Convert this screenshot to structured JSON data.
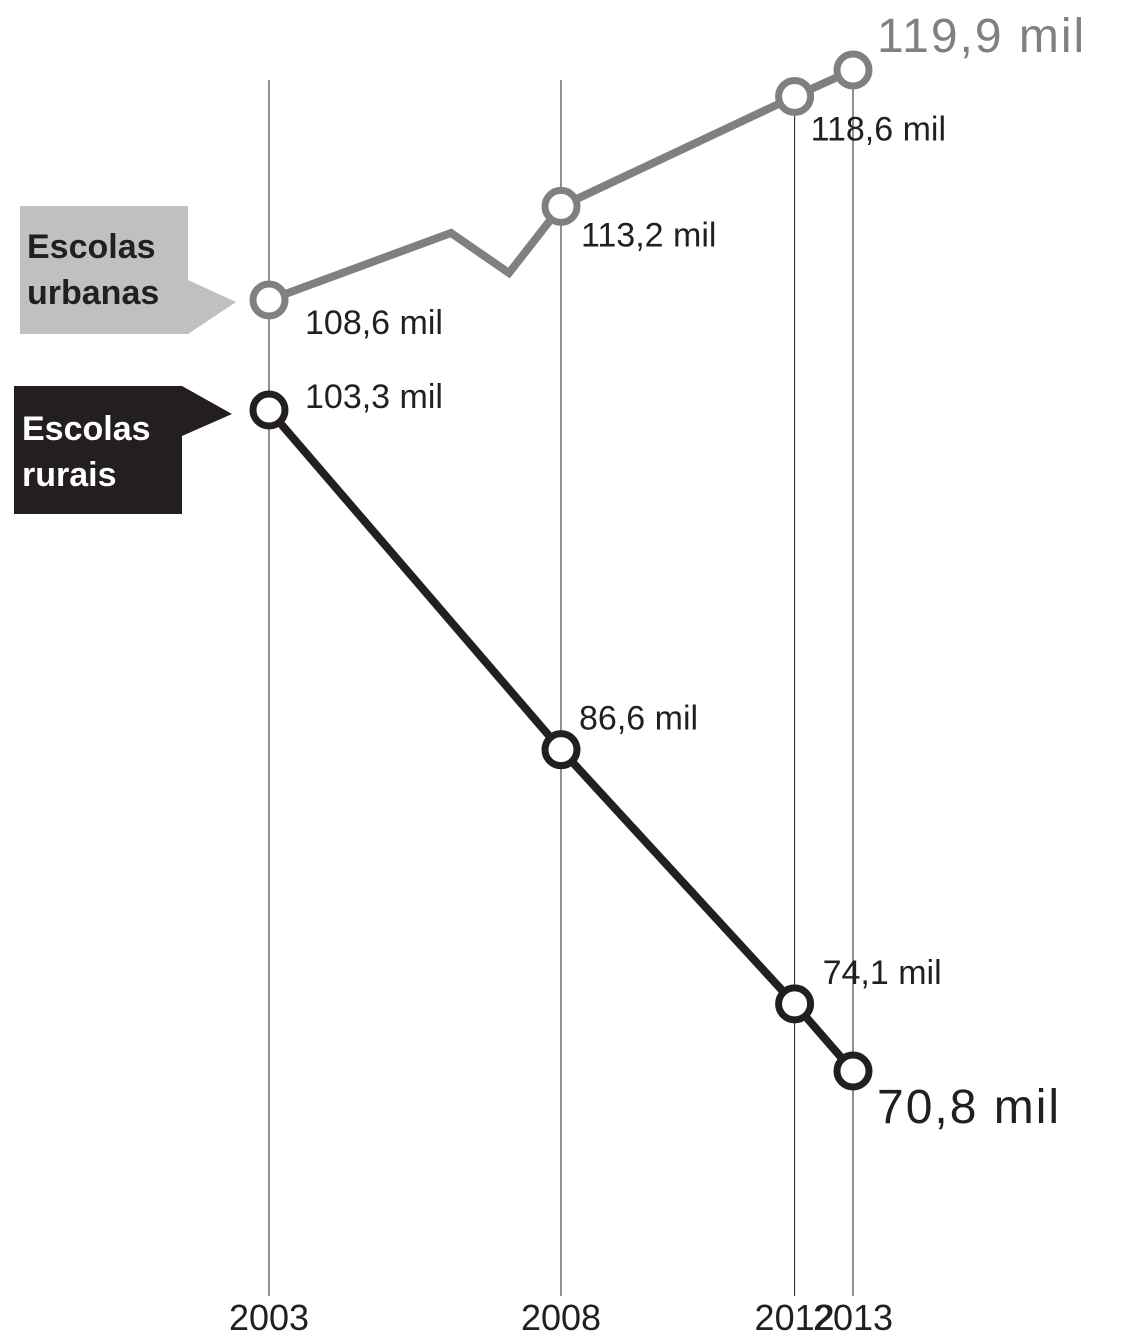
{
  "chart_data": {
    "type": "line",
    "x": [
      "2003",
      "2008",
      "2012",
      "2013"
    ],
    "series": [
      {
        "name": "Escolas urbanas",
        "legend_lines": [
          "Escolas",
          "urbanas"
        ],
        "color": "#808080",
        "legend_bg": "#c0c0c0",
        "legend_text_color": "#231f20",
        "value_labels": [
          "108,6 mil",
          "113,2 mil",
          "118,6 mil",
          "119,9 mil"
        ],
        "values": [
          108.6,
          113.2,
          118.6,
          119.9
        ]
      },
      {
        "name": "Escolas rurais",
        "legend_lines": [
          "Escolas",
          "rurais"
        ],
        "color": "#231f20",
        "legend_bg": "#231f20",
        "legend_text_color": "#ffffff",
        "value_labels": [
          "103,3 mil",
          "86,6 mil",
          "74,1 mil",
          "70,8 mil"
        ],
        "values": [
          103.3,
          86.6,
          74.1,
          70.8
        ]
      }
    ],
    "grid": "vertical lines at each year"
  }
}
